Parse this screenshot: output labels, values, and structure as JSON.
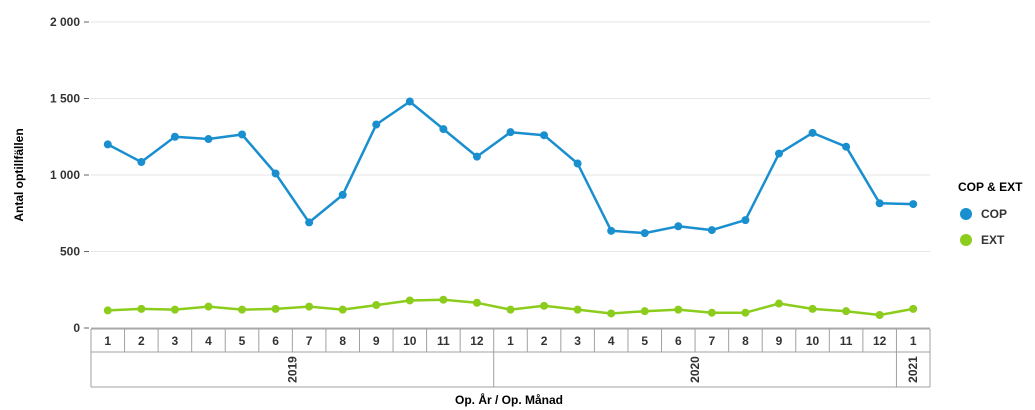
{
  "chart_data": {
    "type": "line",
    "xlabel": "Op. År / Op. Månad",
    "ylabel": "Antal optillfällen",
    "ylim": [
      0,
      2000
    ],
    "yticks": [
      {
        "value": 0,
        "label": "0"
      },
      {
        "value": 500,
        "label": "500"
      },
      {
        "value": 1000,
        "label": "1 000"
      },
      {
        "value": 1500,
        "label": "1 500"
      },
      {
        "value": 2000,
        "label": "2 000"
      }
    ],
    "grid": true,
    "categories": [
      "1",
      "2",
      "3",
      "4",
      "5",
      "6",
      "7",
      "8",
      "9",
      "10",
      "11",
      "12",
      "1",
      "2",
      "3",
      "4",
      "5",
      "6",
      "7",
      "8",
      "9",
      "10",
      "11",
      "12",
      "1"
    ],
    "groups": [
      {
        "label": "2019",
        "count": 12
      },
      {
        "label": "2020",
        "count": 12
      },
      {
        "label": "2021",
        "count": 1
      }
    ],
    "legend": {
      "title": "COP & EXT",
      "position": "right"
    },
    "series": [
      {
        "name": "COP",
        "color": "#1a8fcf",
        "values": [
          1200,
          1085,
          1250,
          1235,
          1265,
          1010,
          690,
          870,
          1330,
          1480,
          1300,
          1120,
          1280,
          1260,
          1075,
          635,
          620,
          665,
          640,
          705,
          1140,
          1275,
          1185,
          815,
          810
        ]
      },
      {
        "name": "EXT",
        "color": "#8ccc1c",
        "values": [
          115,
          125,
          120,
          140,
          120,
          125,
          140,
          120,
          150,
          180,
          185,
          165,
          120,
          145,
          120,
          95,
          110,
          120,
          100,
          100,
          160,
          125,
          110,
          85,
          125
        ]
      }
    ]
  }
}
